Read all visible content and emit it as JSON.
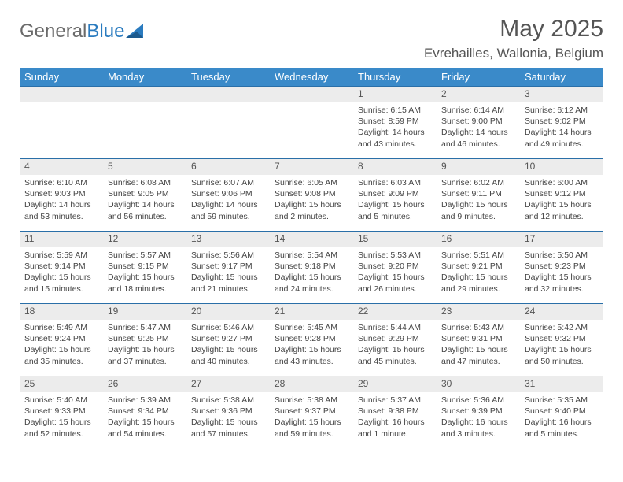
{
  "logo": {
    "general": "General",
    "blue": "Blue"
  },
  "title": "May 2025",
  "location": "Evrehailles, Wallonia, Belgium",
  "header_bg": "#3a8ac9",
  "daynum_bg": "#ececec",
  "border_color": "#2a6fa8",
  "days": [
    "Sunday",
    "Monday",
    "Tuesday",
    "Wednesday",
    "Thursday",
    "Friday",
    "Saturday"
  ],
  "weeks": [
    [
      null,
      null,
      null,
      null,
      {
        "n": "1",
        "sr": "6:15 AM",
        "ss": "8:59 PM",
        "dl": "14 hours and 43 minutes."
      },
      {
        "n": "2",
        "sr": "6:14 AM",
        "ss": "9:00 PM",
        "dl": "14 hours and 46 minutes."
      },
      {
        "n": "3",
        "sr": "6:12 AM",
        "ss": "9:02 PM",
        "dl": "14 hours and 49 minutes."
      }
    ],
    [
      {
        "n": "4",
        "sr": "6:10 AM",
        "ss": "9:03 PM",
        "dl": "14 hours and 53 minutes."
      },
      {
        "n": "5",
        "sr": "6:08 AM",
        "ss": "9:05 PM",
        "dl": "14 hours and 56 minutes."
      },
      {
        "n": "6",
        "sr": "6:07 AM",
        "ss": "9:06 PM",
        "dl": "14 hours and 59 minutes."
      },
      {
        "n": "7",
        "sr": "6:05 AM",
        "ss": "9:08 PM",
        "dl": "15 hours and 2 minutes."
      },
      {
        "n": "8",
        "sr": "6:03 AM",
        "ss": "9:09 PM",
        "dl": "15 hours and 5 minutes."
      },
      {
        "n": "9",
        "sr": "6:02 AM",
        "ss": "9:11 PM",
        "dl": "15 hours and 9 minutes."
      },
      {
        "n": "10",
        "sr": "6:00 AM",
        "ss": "9:12 PM",
        "dl": "15 hours and 12 minutes."
      }
    ],
    [
      {
        "n": "11",
        "sr": "5:59 AM",
        "ss": "9:14 PM",
        "dl": "15 hours and 15 minutes."
      },
      {
        "n": "12",
        "sr": "5:57 AM",
        "ss": "9:15 PM",
        "dl": "15 hours and 18 minutes."
      },
      {
        "n": "13",
        "sr": "5:56 AM",
        "ss": "9:17 PM",
        "dl": "15 hours and 21 minutes."
      },
      {
        "n": "14",
        "sr": "5:54 AM",
        "ss": "9:18 PM",
        "dl": "15 hours and 24 minutes."
      },
      {
        "n": "15",
        "sr": "5:53 AM",
        "ss": "9:20 PM",
        "dl": "15 hours and 26 minutes."
      },
      {
        "n": "16",
        "sr": "5:51 AM",
        "ss": "9:21 PM",
        "dl": "15 hours and 29 minutes."
      },
      {
        "n": "17",
        "sr": "5:50 AM",
        "ss": "9:23 PM",
        "dl": "15 hours and 32 minutes."
      }
    ],
    [
      {
        "n": "18",
        "sr": "5:49 AM",
        "ss": "9:24 PM",
        "dl": "15 hours and 35 minutes."
      },
      {
        "n": "19",
        "sr": "5:47 AM",
        "ss": "9:25 PM",
        "dl": "15 hours and 37 minutes."
      },
      {
        "n": "20",
        "sr": "5:46 AM",
        "ss": "9:27 PM",
        "dl": "15 hours and 40 minutes."
      },
      {
        "n": "21",
        "sr": "5:45 AM",
        "ss": "9:28 PM",
        "dl": "15 hours and 43 minutes."
      },
      {
        "n": "22",
        "sr": "5:44 AM",
        "ss": "9:29 PM",
        "dl": "15 hours and 45 minutes."
      },
      {
        "n": "23",
        "sr": "5:43 AM",
        "ss": "9:31 PM",
        "dl": "15 hours and 47 minutes."
      },
      {
        "n": "24",
        "sr": "5:42 AM",
        "ss": "9:32 PM",
        "dl": "15 hours and 50 minutes."
      }
    ],
    [
      {
        "n": "25",
        "sr": "5:40 AM",
        "ss": "9:33 PM",
        "dl": "15 hours and 52 minutes."
      },
      {
        "n": "26",
        "sr": "5:39 AM",
        "ss": "9:34 PM",
        "dl": "15 hours and 54 minutes."
      },
      {
        "n": "27",
        "sr": "5:38 AM",
        "ss": "9:36 PM",
        "dl": "15 hours and 57 minutes."
      },
      {
        "n": "28",
        "sr": "5:38 AM",
        "ss": "9:37 PM",
        "dl": "15 hours and 59 minutes."
      },
      {
        "n": "29",
        "sr": "5:37 AM",
        "ss": "9:38 PM",
        "dl": "16 hours and 1 minute."
      },
      {
        "n": "30",
        "sr": "5:36 AM",
        "ss": "9:39 PM",
        "dl": "16 hours and 3 minutes."
      },
      {
        "n": "31",
        "sr": "5:35 AM",
        "ss": "9:40 PM",
        "dl": "16 hours and 5 minutes."
      }
    ]
  ],
  "labels": {
    "sunrise": "Sunrise: ",
    "sunset": "Sunset: ",
    "daylight": "Daylight: "
  }
}
